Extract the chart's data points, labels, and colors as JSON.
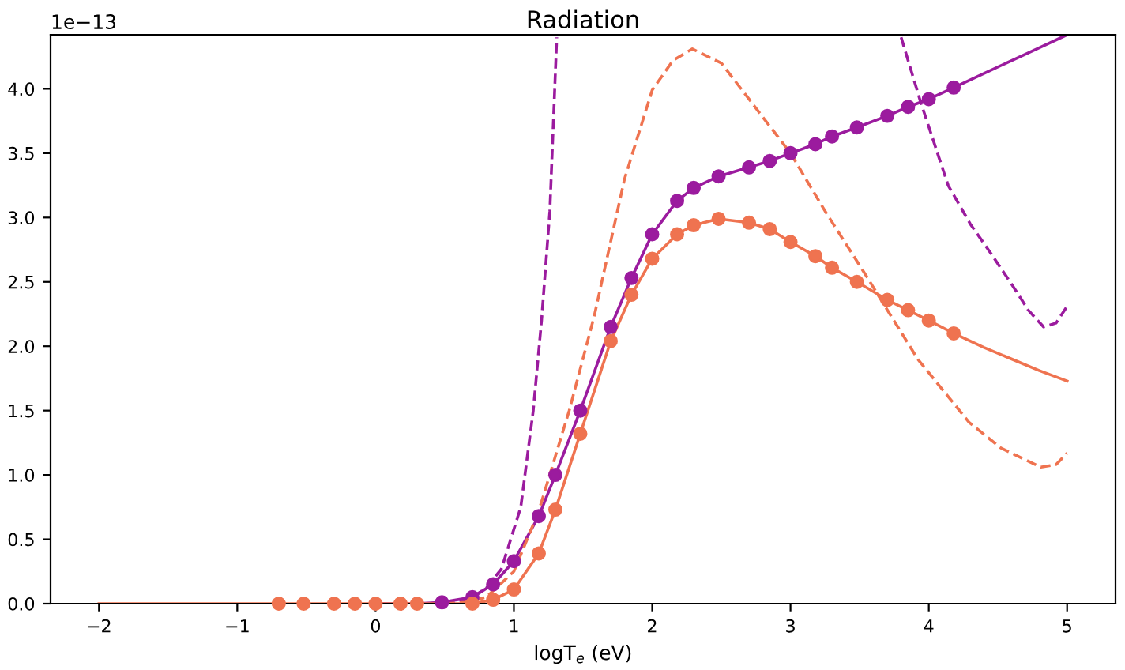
{
  "chart_data": {
    "type": "line",
    "title": "Radiation",
    "xlabel": "logT$_{e}$ (eV)",
    "annotations": [
      "1e−13"
    ],
    "xlim": [
      -2.35,
      5.35
    ],
    "ylim": [
      0,
      4.42
    ],
    "xticks": [
      {
        "value": -2,
        "label": "−2"
      },
      {
        "value": -1,
        "label": "−1"
      },
      0,
      1,
      2,
      3,
      4,
      5
    ],
    "yticks": [
      {
        "value": 0,
        "label": "0.0"
      },
      0.5,
      {
        "value": 1,
        "label": "1.0"
      },
      1.5,
      {
        "value": 2,
        "label": "2.0"
      },
      2.5,
      {
        "value": 3,
        "label": "3.0"
      },
      3.5,
      {
        "value": 4,
        "label": "4.0"
      }
    ],
    "grid": false,
    "legend": false,
    "series": [
      {
        "line_style": "solid",
        "marker": "none",
        "color": "#9b1b9e",
        "x": [
          0,
          0.3,
          0.48,
          0.7,
          0.85,
          1.0,
          1.18,
          1.3,
          1.48,
          1.7,
          1.85,
          2.0,
          2.18,
          2.3,
          2.48,
          2.7,
          2.85,
          3.0,
          3.18,
          3.3,
          3.48,
          3.7,
          3.85,
          4.0,
          4.18,
          4.4,
          4.6,
          4.8,
          5.0
        ],
        "values": [
          0,
          0,
          0.01,
          0.05,
          0.15,
          0.33,
          0.68,
          1.0,
          1.5,
          2.15,
          2.53,
          2.87,
          3.13,
          3.23,
          3.32,
          3.39,
          3.44,
          3.5,
          3.57,
          3.63,
          3.7,
          3.79,
          3.86,
          3.92,
          4.01,
          4.12,
          4.22,
          4.32,
          4.42
        ]
      },
      {
        "line_style": "solid",
        "marker": "none",
        "color": "#ef7350",
        "x": [
          -2,
          -1.5,
          -1,
          -0.5,
          0,
          0.3,
          0.48,
          0.7,
          0.85,
          1.0,
          1.18,
          1.3,
          1.48,
          1.7,
          1.85,
          2.0,
          2.18,
          2.3,
          2.48,
          2.7,
          2.85,
          3.0,
          3.18,
          3.3,
          3.48,
          3.7,
          3.85,
          4.0,
          4.18,
          4.4,
          4.6,
          4.8,
          5.0
        ],
        "values": [
          0,
          0,
          0,
          0,
          0,
          0,
          0,
          0,
          0.03,
          0.11,
          0.39,
          0.73,
          1.32,
          2.04,
          2.4,
          2.68,
          2.87,
          2.94,
          2.99,
          2.96,
          2.91,
          2.81,
          2.7,
          2.61,
          2.5,
          2.36,
          2.28,
          2.2,
          2.1,
          1.99,
          1.9,
          1.81,
          1.73
        ]
      },
      {
        "line_style": "dashed",
        "marker": "none",
        "color": "#9b1b9e",
        "x": [
          0.5,
          0.6,
          0.7,
          0.8,
          0.91,
          1.05,
          1.14,
          1.2,
          1.26,
          1.31,
          3.55,
          3.8,
          3.94,
          4.14,
          4.3,
          4.45,
          4.6,
          4.72,
          4.83,
          4.92,
          5.0
        ],
        "values": [
          0,
          0.01,
          0.05,
          0.12,
          0.27,
          0.75,
          1.5,
          2.2,
          3.05,
          4.4,
          null,
          4.4,
          3.9,
          3.25,
          2.95,
          2.72,
          2.48,
          2.28,
          2.15,
          2.18,
          2.31
        ]
      },
      {
        "line_style": "dashed",
        "marker": "none",
        "color": "#ef7350",
        "x": [
          0.5,
          0.65,
          0.8,
          1.0,
          1.18,
          1.4,
          1.58,
          1.8,
          2.0,
          2.15,
          2.29,
          2.5,
          2.75,
          3.0,
          3.25,
          3.54,
          3.92,
          4.29,
          4.52,
          4.81,
          4.92,
          5.0
        ],
        "values": [
          0,
          0.01,
          0.05,
          0.25,
          0.72,
          1.5,
          2.23,
          3.3,
          3.99,
          4.22,
          4.31,
          4.2,
          3.85,
          3.5,
          3.05,
          2.56,
          1.9,
          1.41,
          1.21,
          1.06,
          1.08,
          1.17
        ]
      },
      {
        "type": "scatter",
        "marker": "circle",
        "color": "#9b1b9e",
        "x": [
          0.48,
          0.7,
          0.85,
          1.0,
          1.18,
          1.3,
          1.48,
          1.7,
          1.85,
          2.0,
          2.18,
          2.3,
          2.48,
          2.7,
          2.85,
          3.0,
          3.18,
          3.3,
          3.48,
          3.7,
          3.85,
          4.0,
          4.18
        ],
        "values": [
          0.01,
          0.05,
          0.15,
          0.33,
          0.68,
          1.0,
          1.5,
          2.15,
          2.53,
          2.87,
          3.13,
          3.23,
          3.32,
          3.39,
          3.44,
          3.5,
          3.57,
          3.63,
          3.7,
          3.79,
          3.86,
          3.92,
          4.01
        ]
      },
      {
        "type": "scatter",
        "marker": "circle",
        "color": "#ef7350",
        "x": [
          -0.7,
          -0.52,
          -0.3,
          -0.15,
          0,
          0.18,
          0.3,
          0.7,
          0.85,
          1.0,
          1.18,
          1.3,
          1.48,
          1.7,
          1.85,
          2.0,
          2.18,
          2.3,
          2.48,
          2.7,
          2.85,
          3.0,
          3.18,
          3.3,
          3.48,
          3.7,
          3.85,
          4.0,
          4.18
        ],
        "values": [
          0,
          0,
          0,
          0,
          0,
          0,
          0,
          0,
          0.03,
          0.11,
          0.39,
          0.73,
          1.32,
          2.04,
          2.4,
          2.68,
          2.87,
          2.94,
          2.99,
          2.96,
          2.91,
          2.81,
          2.7,
          2.61,
          2.5,
          2.36,
          2.28,
          2.2,
          2.1
        ]
      }
    ]
  }
}
